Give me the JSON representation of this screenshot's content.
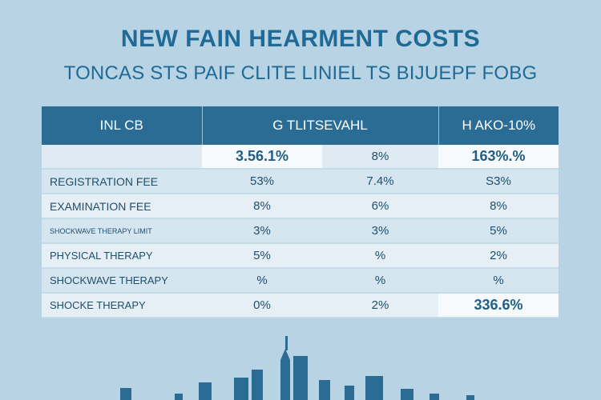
{
  "header": {
    "title": "NEW FAIN HEARMENT COSTS",
    "subtitle": "TONCAS STS PAIF CLITE LINIEL TS BIJUEPF FOBG"
  },
  "chart_data": {
    "type": "table",
    "columns": [
      "INL CB",
      "G TLITSEVAHL",
      "H AKO-10%"
    ],
    "rows": [
      {
        "label": "",
        "values": [
          "3.56.1%",
          "8%",
          "163%.%"
        ]
      },
      {
        "label": "REGISTRATION FEE",
        "values": [
          "53%",
          "7.4%",
          "S3%"
        ]
      },
      {
        "label": "EXAMINATION FEE",
        "values": [
          "8%",
          "6%",
          "8%"
        ]
      },
      {
        "label": "SHOCKWAVE THERAPY LIMIT",
        "values": [
          "3%",
          "3%",
          "5%"
        ]
      },
      {
        "label": "PHYSICAL THERAPY",
        "values": [
          "5%",
          "%",
          "2%"
        ]
      },
      {
        "label": "SHOCKWAVE THERAPY",
        "values": [
          "%",
          "%",
          "%"
        ]
      },
      {
        "label": "SHOCKE THERAPY",
        "values": [
          "0%",
          "2%",
          "336.6%"
        ]
      }
    ]
  },
  "colors": {
    "background": "#b8d3e3",
    "header": "#2a6c94",
    "title": "#1f6a96",
    "skyline": "#2a6c94"
  }
}
